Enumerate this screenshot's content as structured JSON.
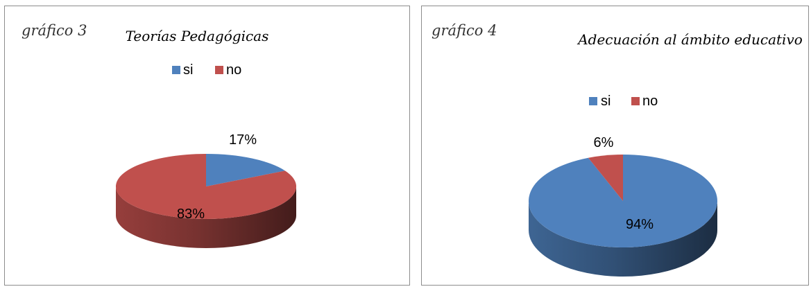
{
  "chart_data": [
    {
      "type": "pie",
      "figure_label": "gráfico 3",
      "title": "Teorías Pedagógicas",
      "categories": [
        "si",
        "no"
      ],
      "values": [
        17,
        83
      ],
      "data_labels": [
        "17%",
        "83%"
      ],
      "colors": [
        "#4F81BD",
        "#C0504D"
      ],
      "legend": "top",
      "style": "3d"
    },
    {
      "type": "pie",
      "figure_label": "gráfico 4",
      "title": "Adecuación al ámbito educativo",
      "categories": [
        "si",
        "no"
      ],
      "values": [
        94,
        6
      ],
      "data_labels": [
        "94%",
        "6%"
      ],
      "colors": [
        "#4F81BD",
        "#C0504D"
      ],
      "legend": "top",
      "style": "3d"
    }
  ]
}
